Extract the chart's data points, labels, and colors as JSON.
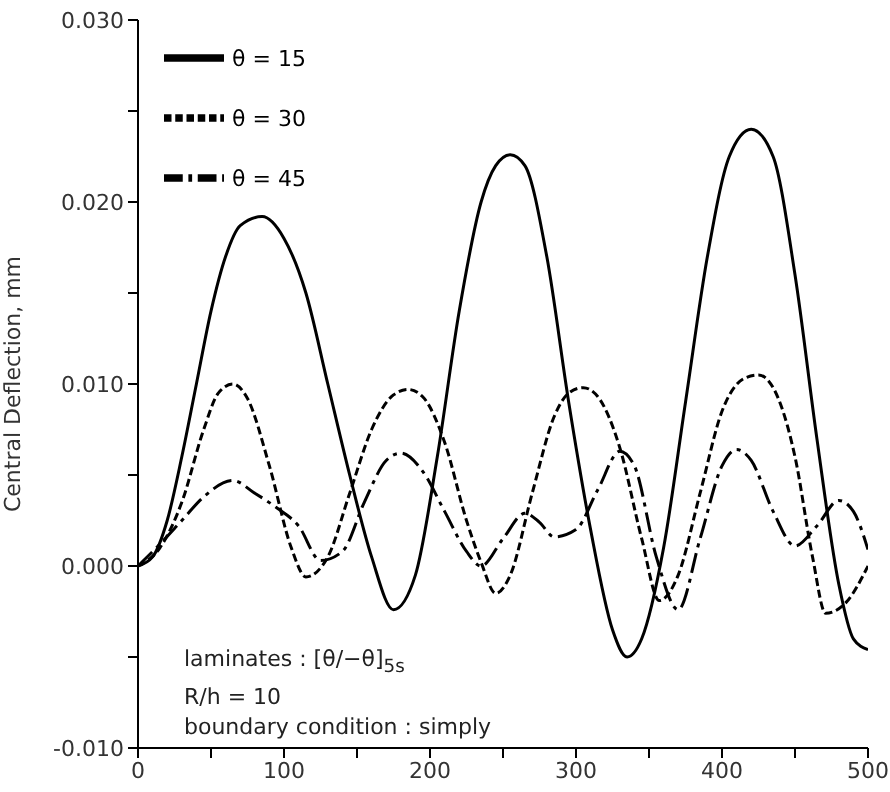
{
  "chart_data": {
    "type": "line",
    "ylabel": "Central Deflection, mm",
    "xlim": [
      0,
      500
    ],
    "xticks": [
      0,
      {
        "value": 50,
        "label": null
      },
      100,
      {
        "value": 150,
        "label": null
      },
      200,
      {
        "value": 250,
        "label": null
      },
      300,
      {
        "value": 350,
        "label": null
      },
      400,
      {
        "value": 450,
        "label": null
      },
      500
    ],
    "ylim": [
      -0.01,
      0.03
    ],
    "yticks": [
      {
        "value": -0.01,
        "label": "-0.010"
      },
      {
        "value": -0.005,
        "label": null
      },
      {
        "value": 0,
        "label": "0.000"
      },
      {
        "value": 0.005,
        "label": null
      },
      {
        "value": 0.01,
        "label": "0.010"
      },
      {
        "value": 0.015,
        "label": null
      },
      {
        "value": 0.02,
        "label": "0.020"
      },
      {
        "value": 0.025,
        "label": null
      },
      {
        "value": 0.03,
        "label": "0.030"
      }
    ],
    "grid": false,
    "legend": "top left",
    "marker": "none",
    "annotations": [
      "laminates : [θ/−θ]$_{5s}$",
      "R/h = 10",
      "boundary condition : simply"
    ],
    "series": [
      {
        "name": "θ = 15",
        "color": "#000000",
        "line_style": "solid",
        "x": [
          0,
          10,
          20,
          30,
          40,
          50,
          60,
          70,
          85,
          100,
          115,
          130,
          145,
          160,
          175,
          190,
          205,
          220,
          235,
          245,
          255,
          265,
          280,
          295,
          310,
          325,
          335,
          345,
          360,
          375,
          390,
          405,
          420,
          435,
          450,
          465,
          480,
          490,
          500
        ],
        "values": [
          0,
          0.0005,
          0.0025,
          0.006,
          0.01,
          0.014,
          0.017,
          0.0187,
          0.0192,
          0.018,
          0.015,
          0.01,
          0.005,
          0.0005,
          -0.0024,
          -0.0005,
          0.006,
          0.014,
          0.02,
          0.022,
          0.0226,
          0.022,
          0.017,
          0.009,
          0.002,
          -0.0035,
          -0.005,
          -0.004,
          0.001,
          0.009,
          0.017,
          0.0225,
          0.024,
          0.0225,
          0.016,
          0.007,
          -0.001,
          -0.004,
          -0.0046
        ]
      },
      {
        "name": "θ = 30",
        "color": "#000000",
        "line_style": "dashed",
        "x": [
          0,
          15,
          30,
          45,
          55,
          65,
          75,
          90,
          105,
          115,
          130,
          145,
          160,
          175,
          185,
          195,
          210,
          225,
          235,
          245,
          255,
          270,
          285,
          295,
          305,
          315,
          330,
          345,
          357,
          370,
          385,
          400,
          415,
          425,
          435,
          450,
          462,
          471,
          485,
          500
        ],
        "values": [
          0,
          0.001,
          0.0035,
          0.0075,
          0.0095,
          0.01,
          0.0092,
          0.0055,
          0.001,
          -0.0006,
          0.0005,
          0.004,
          0.0075,
          0.0094,
          0.0097,
          0.0093,
          0.0068,
          0.0025,
          0.0002,
          -0.0015,
          -0.0005,
          0.004,
          0.0082,
          0.0095,
          0.0098,
          0.0093,
          0.0065,
          0.0015,
          -0.0019,
          -0.0005,
          0.004,
          0.0085,
          0.0103,
          0.0105,
          0.0098,
          0.006,
          0.0005,
          -0.0026,
          -0.002,
          0
        ]
      },
      {
        "name": "θ = 45",
        "color": "#000000",
        "line_style": "dashdot",
        "x": [
          0,
          15,
          30,
          45,
          65,
          80,
          95,
          110,
          125,
          140,
          155,
          170,
          180,
          195,
          210,
          225,
          235,
          250,
          265,
          275,
          285,
          300,
          315,
          330,
          340,
          355,
          370,
          385,
          400,
          410,
          420,
          435,
          450,
          465,
          480,
          490,
          500
        ],
        "values": [
          0,
          0.0012,
          0.0025,
          0.0038,
          0.0047,
          0.004,
          0.0032,
          0.0022,
          0.0003,
          0.0008,
          0.0035,
          0.0058,
          0.0062,
          0.0052,
          0.003,
          0.0008,
          0,
          0.0015,
          0.0029,
          0.0024,
          0.0016,
          0.002,
          0.0042,
          0.0063,
          0.0055,
          0.0005,
          -0.0024,
          0.0015,
          0.0055,
          0.0064,
          0.0058,
          0.003,
          0.0011,
          0.0022,
          0.0036,
          0.003,
          0.0009
        ]
      }
    ]
  }
}
